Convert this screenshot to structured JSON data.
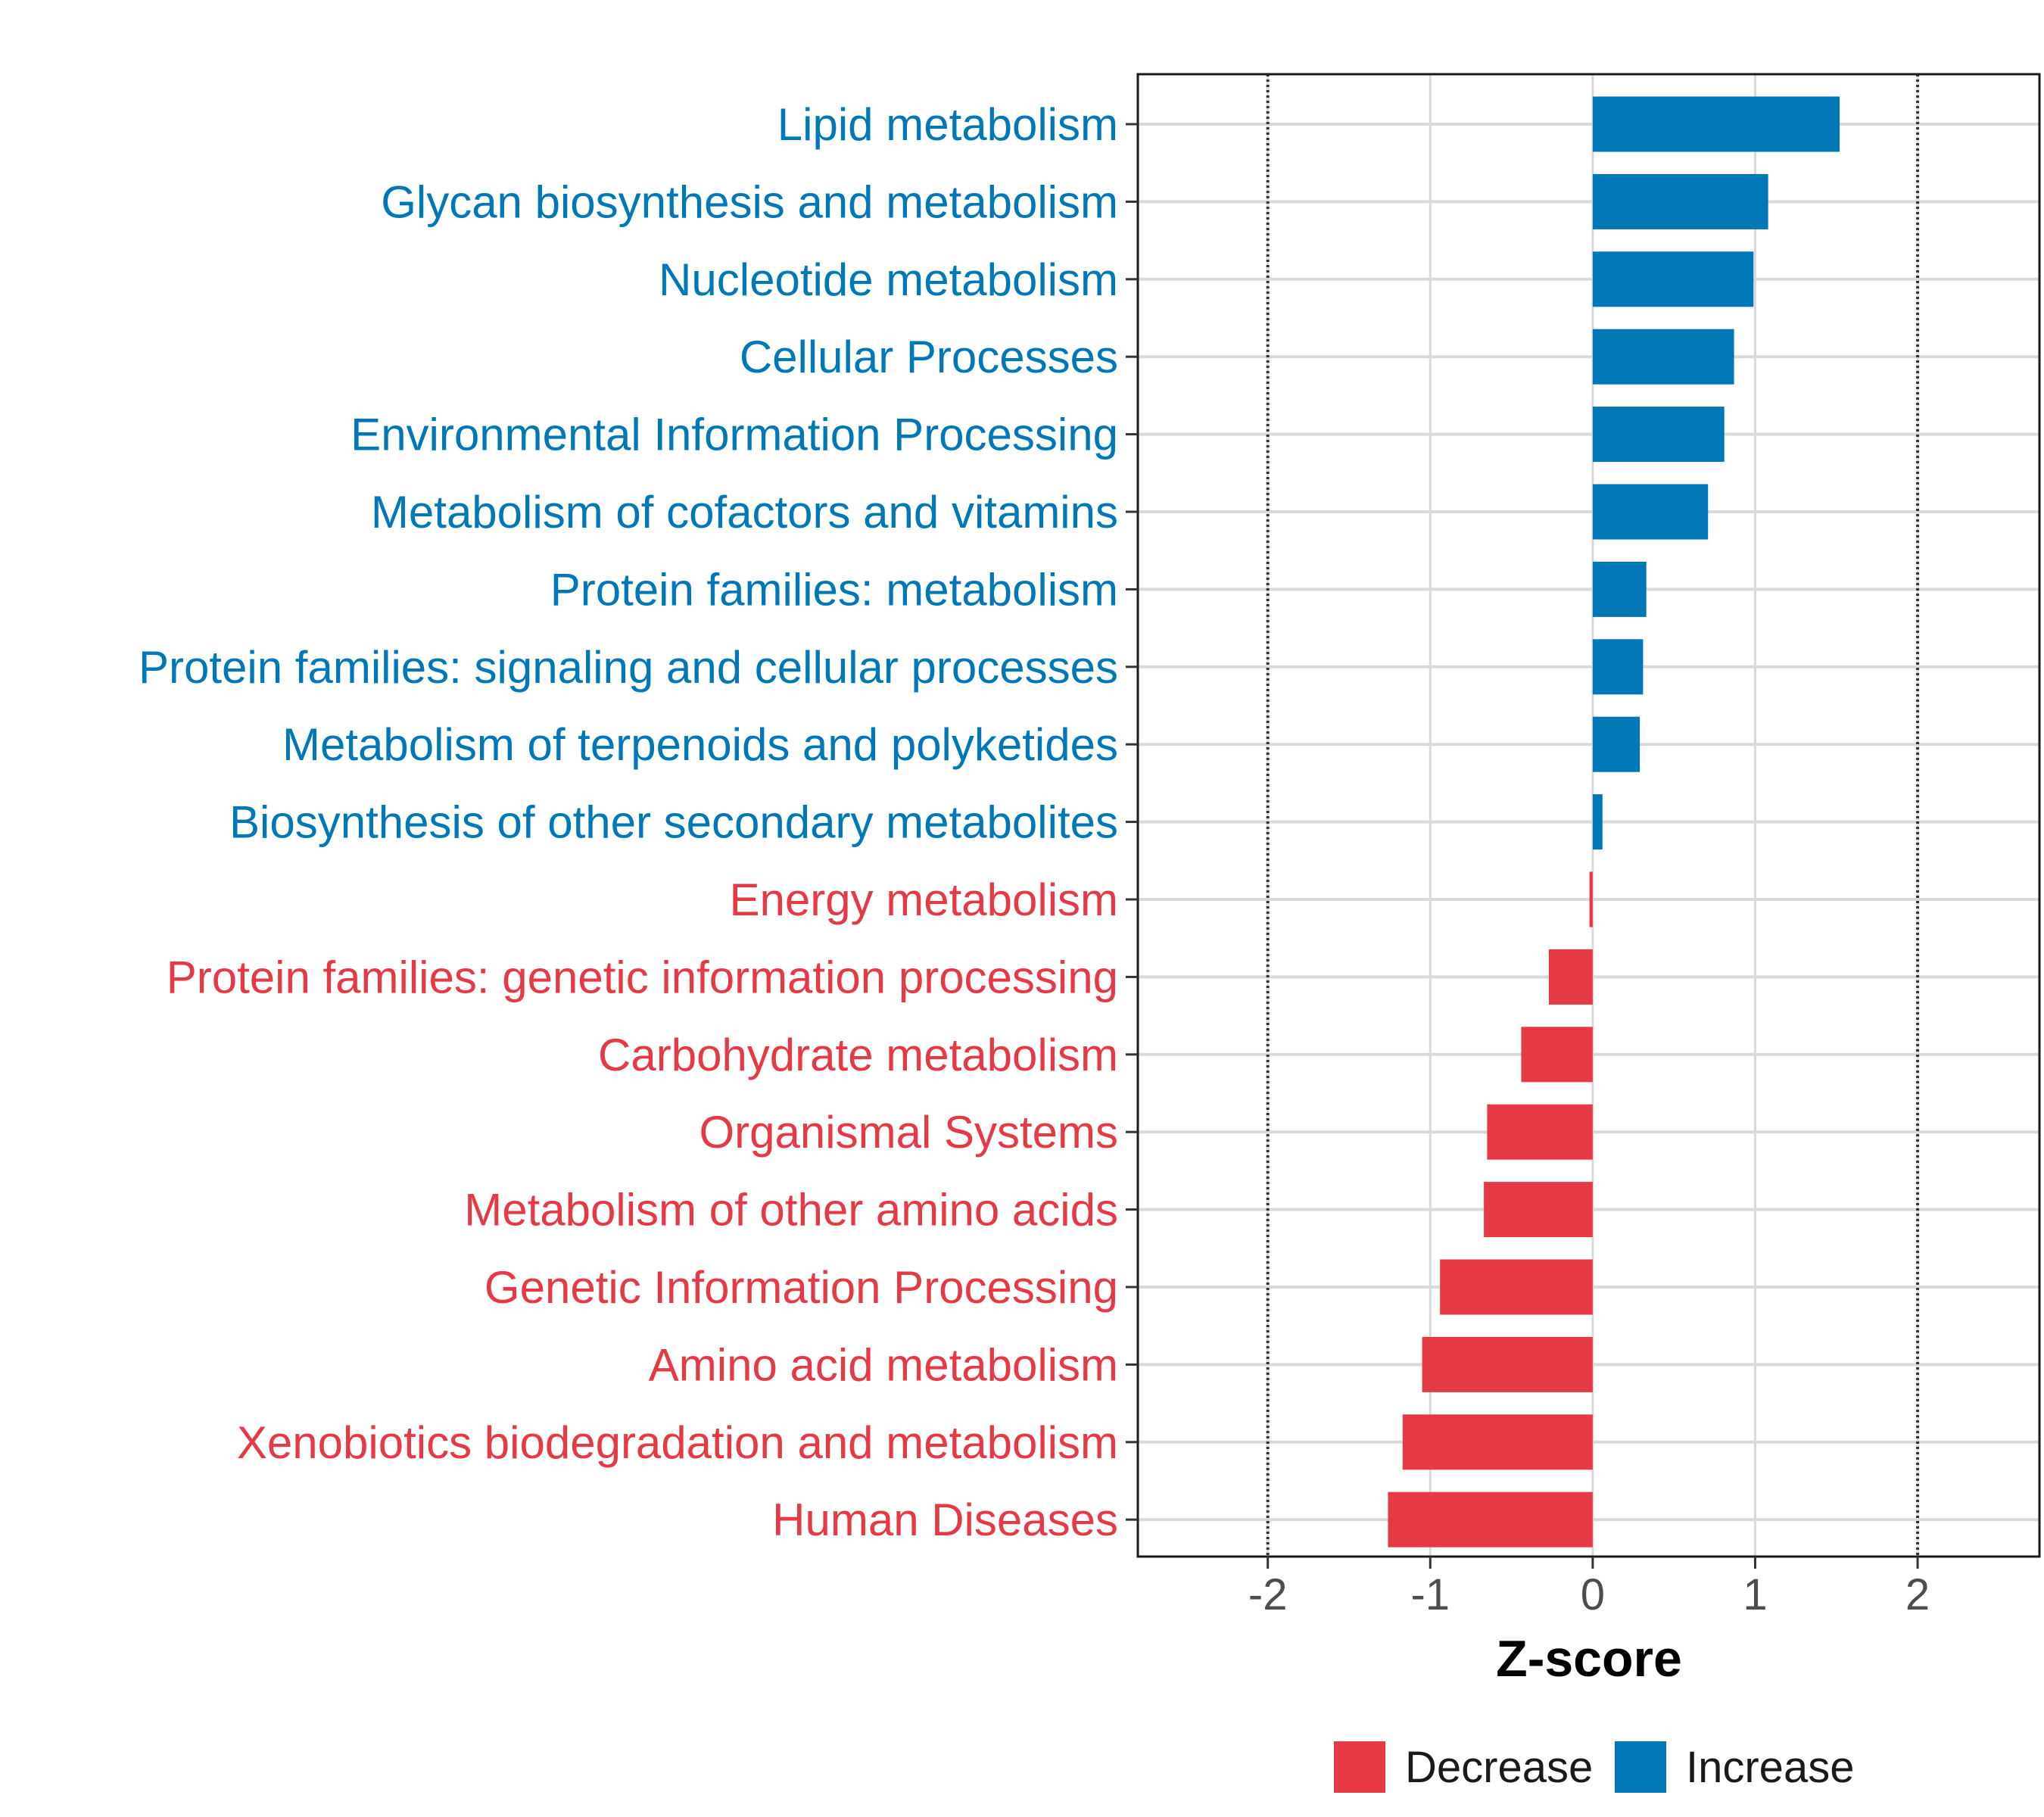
{
  "chart_data": {
    "type": "bar",
    "orientation": "horizontal",
    "xlabel": "Z-score",
    "xlim": [
      -2.8,
      2.75
    ],
    "xticks": [
      -2,
      -1,
      0,
      1,
      2
    ],
    "xtick_labels": [
      "-2",
      "-1",
      "0",
      "1",
      "2"
    ],
    "reference_lines": [
      -2,
      2
    ],
    "grid": true,
    "legend_position": "bottom",
    "legend": [
      {
        "label": "Decrease",
        "color": "#E63946"
      },
      {
        "label": "Increase",
        "color": "#0077B6"
      }
    ],
    "categories": [
      "Lipid metabolism",
      "Glycan biosynthesis and metabolism",
      "Nucleotide metabolism",
      "Cellular Processes",
      "Environmental Information Processing",
      "Metabolism of cofactors and vitamins",
      "Protein families: metabolism",
      "Protein families: signaling and cellular processes",
      "Metabolism of terpenoids and polyketides",
      "Biosynthesis of other secondary metabolites",
      "Energy metabolism",
      "Protein families: genetic information processing",
      "Carbohydrate metabolism",
      "Organismal Systems",
      "Metabolism of other amino acids",
      "Genetic Information Processing",
      "Amino acid metabolism",
      "Xenobiotics biodegradation and metabolism",
      "Human Diseases"
    ],
    "values": [
      1.52,
      1.08,
      0.99,
      0.87,
      0.81,
      0.71,
      0.33,
      0.31,
      0.29,
      0.06,
      -0.02,
      -0.27,
      -0.44,
      -0.65,
      -0.67,
      -0.94,
      -1.05,
      -1.17,
      -1.26
    ],
    "groups": [
      "Increase",
      "Increase",
      "Increase",
      "Increase",
      "Increase",
      "Increase",
      "Increase",
      "Increase",
      "Increase",
      "Increase",
      "Decrease",
      "Decrease",
      "Decrease",
      "Decrease",
      "Decrease",
      "Decrease",
      "Decrease",
      "Decrease",
      "Decrease"
    ]
  }
}
